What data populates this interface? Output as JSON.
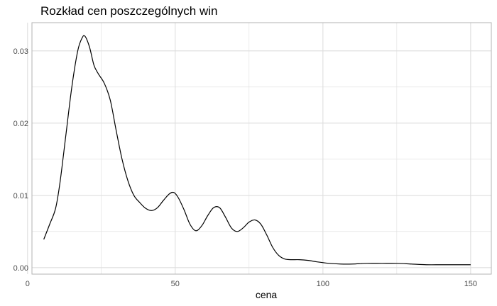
{
  "chart_data": {
    "type": "line",
    "title": "Rozkład cen poszczególnych win",
    "xlabel": "cena",
    "ylabel": "",
    "xlim": [
      1.5,
      157
    ],
    "ylim": [
      -0.0009,
      0.0339
    ],
    "x_ticks": [
      0,
      50,
      100,
      150
    ],
    "x_tick_labels": [
      "0",
      "50",
      "100",
      "150"
    ],
    "y_ticks": [
      0.0,
      0.01,
      0.02,
      0.03
    ],
    "y_tick_labels": [
      "0.00",
      "0.01",
      "0.02",
      "0.03"
    ],
    "grid": true,
    "colors": {
      "line": "#000000",
      "grid": "#dedede",
      "panel_border": "#b3b3b3",
      "background": "#ffffff"
    },
    "series": [
      {
        "x": [
          5.5,
          7.5,
          9.5,
          11,
          13,
          15,
          17,
          18.5,
          19.5,
          21,
          22.5,
          24,
          26,
          28,
          30,
          32,
          34,
          36,
          38,
          40,
          42,
          44,
          46,
          48,
          49.5,
          51,
          53,
          55,
          57,
          59,
          61,
          63,
          65,
          67,
          69,
          71,
          73,
          75,
          77,
          79,
          81,
          83,
          85,
          87,
          89,
          92,
          95,
          98,
          102,
          106,
          110,
          115,
          120,
          125,
          130,
          135,
          140,
          145,
          150
        ],
        "y": [
          0.0039,
          0.006,
          0.0082,
          0.0118,
          0.0184,
          0.025,
          0.03,
          0.0318,
          0.032,
          0.0305,
          0.028,
          0.0268,
          0.0255,
          0.0232,
          0.019,
          0.015,
          0.012,
          0.01,
          0.009,
          0.0082,
          0.0079,
          0.0083,
          0.0093,
          0.0102,
          0.0104,
          0.0097,
          0.008,
          0.006,
          0.0051,
          0.0058,
          0.0072,
          0.0083,
          0.0083,
          0.007,
          0.0055,
          0.005,
          0.0055,
          0.0063,
          0.0066,
          0.006,
          0.0045,
          0.0028,
          0.0017,
          0.0012,
          0.0011,
          0.0011,
          0.001,
          0.0008,
          0.0006,
          0.0005,
          0.0005,
          0.0006,
          0.0006,
          0.0006,
          0.0005,
          0.0004,
          0.0004,
          0.0004,
          0.0004
        ]
      }
    ]
  }
}
